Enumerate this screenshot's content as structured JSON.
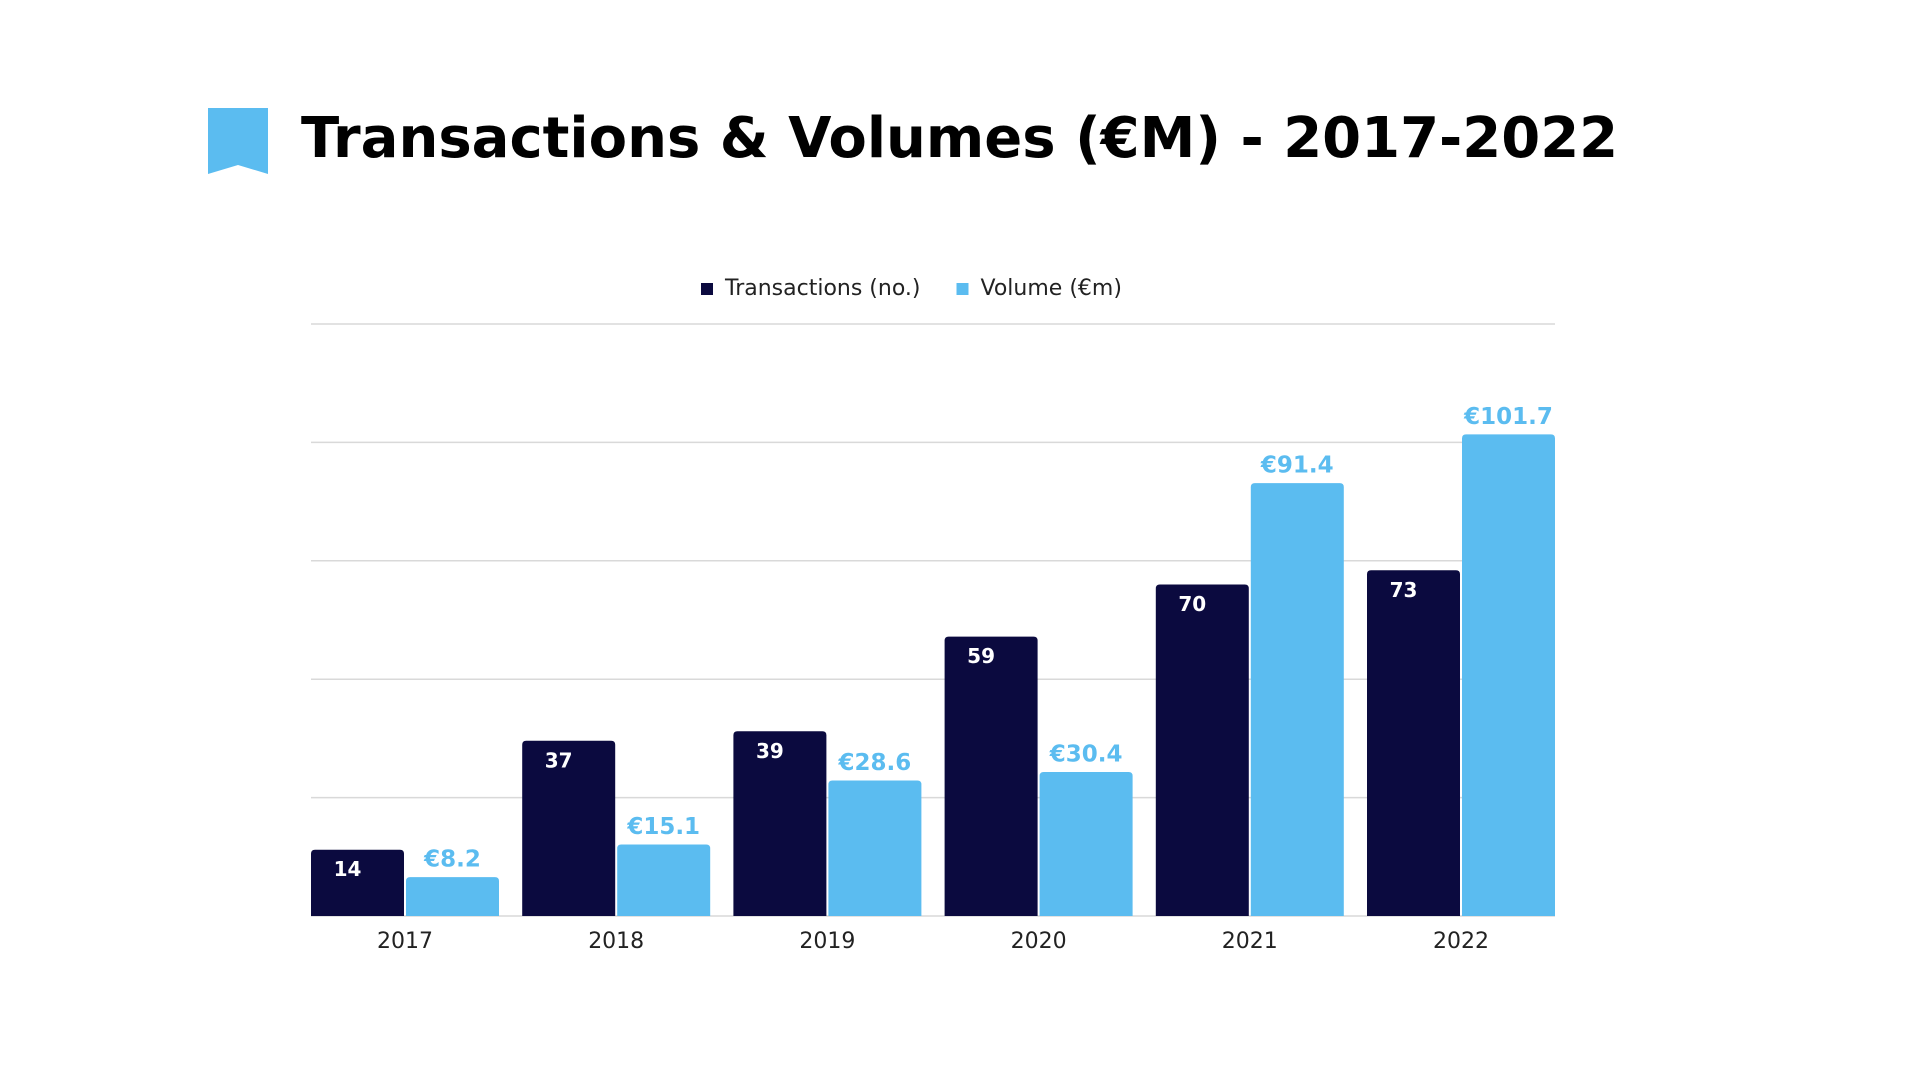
{
  "chart_data": {
    "type": "bar",
    "title": "Transactions & Volumes (€M) - 2017-2022",
    "categories": [
      "2017",
      "2018",
      "2019",
      "2020",
      "2021",
      "2022"
    ],
    "series": [
      {
        "name": "Transactions (no.)",
        "color": "#0b0a3f",
        "values": [
          14,
          37,
          39,
          59,
          70,
          73
        ]
      },
      {
        "name": "Volume (€m)",
        "color": "#5bbcf0",
        "values": [
          8.2,
          15.1,
          28.6,
          30.4,
          91.4,
          101.7
        ],
        "value_labels": [
          "€8.2",
          "€15.1",
          "€28.6",
          "€30.4",
          "€91.4",
          "€101.7"
        ]
      }
    ],
    "ylim": [
      0,
      125
    ],
    "yticks": [
      0,
      25,
      50,
      75,
      100,
      125
    ],
    "grid": true,
    "legend": "top"
  }
}
